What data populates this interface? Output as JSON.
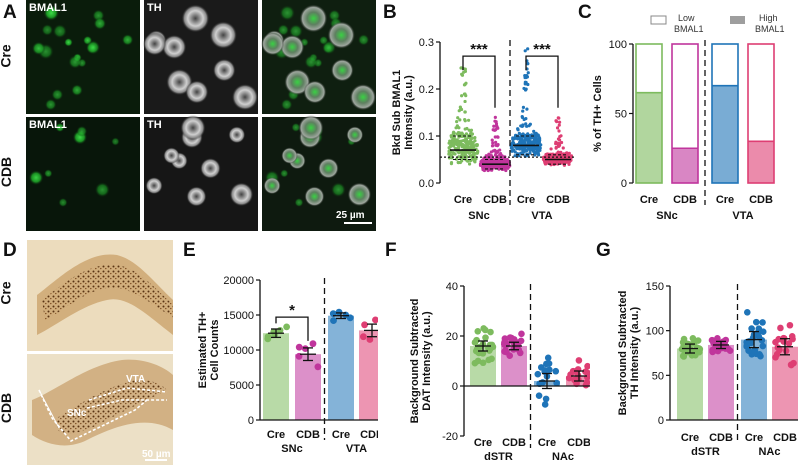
{
  "panel_letters": {
    "A": "A",
    "B": "B",
    "C": "C",
    "D": "D",
    "E": "E",
    "F": "F",
    "G": "G"
  },
  "colors": {
    "cre_green": "#7dbb5e",
    "cdb_magenta": "#c0359c",
    "vta_blue": "#1f74b8",
    "vta_pink": "#de3e73",
    "bmal1_green": "#23b12a",
    "th_gray": "#d8d8d8",
    "tissue_brown": "#8a5a2a"
  },
  "panel_a": {
    "rows": [
      "Cre",
      "CDB"
    ],
    "cols": [
      "BMAL1",
      "TH",
      ""
    ],
    "scalebar": "25 µm"
  },
  "panel_d": {
    "rows": [
      "Cre",
      "CDB"
    ],
    "region_labels": [
      "VTA",
      "SNc"
    ],
    "scalebar": "50 µm"
  },
  "chart_data": [
    {
      "panel": "B",
      "type": "scatter",
      "ylabel": "Bkd Sub BMAL1 Intensity (a.u.)",
      "ylim": [
        0,
        0.3
      ],
      "yticks": [
        "0.0",
        "0.1",
        "0.2",
        "0.3"
      ],
      "categories": [
        "Cre",
        "CDB",
        "Cre",
        "CDB"
      ],
      "groups": [
        "SNc",
        "VTA"
      ],
      "medians": [
        0.07,
        0.04,
        0.08,
        0.05
      ],
      "q1": [
        0.05,
        0.03,
        0.06,
        0.04
      ],
      "q3": [
        0.1,
        0.05,
        0.1,
        0.06
      ],
      "max": [
        0.26,
        0.14,
        0.29,
        0.14
      ],
      "reference_line": 0.055,
      "significance": [
        "***",
        "***"
      ]
    },
    {
      "panel": "C",
      "type": "bar",
      "ylabel": "% of TH+ Cells",
      "ylim": [
        0,
        100
      ],
      "yticks": [
        "0",
        "50",
        "100"
      ],
      "categories": [
        "Cre",
        "CDB",
        "Cre",
        "CDB"
      ],
      "groups": [
        "SNc",
        "VTA"
      ],
      "legend": [
        "Low BMAL1",
        "High BMAL1"
      ],
      "series": [
        {
          "name": "High BMAL1",
          "values": [
            65,
            25,
            70,
            30
          ]
        },
        {
          "name": "Low BMAL1",
          "values": [
            35,
            75,
            30,
            70
          ]
        }
      ]
    },
    {
      "panel": "E",
      "type": "bar",
      "ylabel": "Estimated TH+ Cell Counts",
      "ylim": [
        0,
        20000
      ],
      "yticks": [
        "0",
        "5000",
        "10000",
        "15000",
        "20000"
      ],
      "categories": [
        "Cre",
        "CDB",
        "Cre",
        "CDB"
      ],
      "groups": [
        "SNc",
        "VTA"
      ],
      "values": [
        12400,
        9400,
        14900,
        12800
      ],
      "sem": [
        600,
        900,
        400,
        900
      ],
      "points": [
        [
          11600,
          12200,
          12800,
          13300,
          11900,
          12600
        ],
        [
          9100,
          10200,
          10900,
          7600,
          10400
        ],
        [
          14200,
          15400,
          15000,
          14600,
          15200
        ],
        [
          13600,
          11500,
          14300,
          12700,
          11900
        ]
      ],
      "significance": [
        "*"
      ]
    },
    {
      "panel": "F",
      "type": "bar",
      "ylabel": "Background Subtracted DAT Intensity (a.u.)",
      "ylim": [
        -20,
        40
      ],
      "yticks": [
        "-20",
        "0",
        "20",
        "40"
      ],
      "categories": [
        "Cre",
        "CDB",
        "Cre",
        "CDB"
      ],
      "groups": [
        "dSTR",
        "NAc"
      ],
      "values": [
        16,
        16,
        2,
        4
      ],
      "sem": [
        2,
        1.5,
        3,
        2
      ]
    },
    {
      "panel": "G",
      "type": "bar",
      "ylabel": "Background Subtracted TH Intensity (a.u.)",
      "ylim": [
        0,
        150
      ],
      "yticks": [
        "0",
        "50",
        "100",
        "150"
      ],
      "categories": [
        "Cre",
        "CDB",
        "Cre",
        "CDB"
      ],
      "groups": [
        "dSTR",
        "NAc"
      ],
      "values": [
        80,
        84,
        90,
        82
      ],
      "sem": [
        5,
        4,
        9,
        9
      ]
    }
  ]
}
